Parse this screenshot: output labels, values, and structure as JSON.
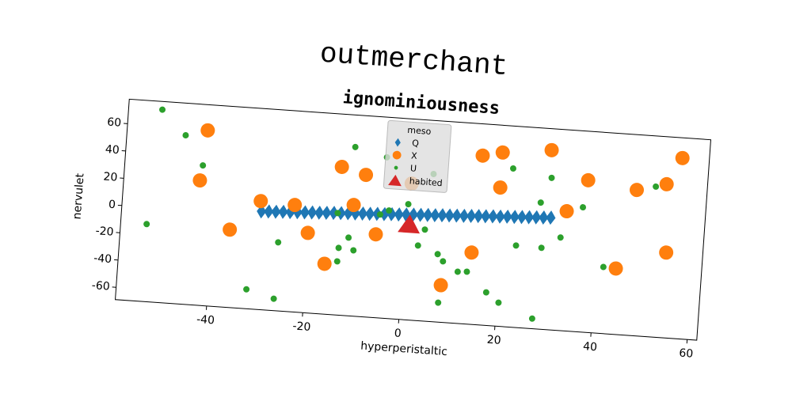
{
  "chart_data": {
    "type": "scatter",
    "suptitle": "outmerchant",
    "title": "ignominiousness",
    "xlabel": "hyperperistaltic",
    "ylabel": "nervulet",
    "xlim": [
      -59,
      62
    ],
    "ylim": [
      -69,
      78
    ],
    "xticks": [
      -40,
      -20,
      0,
      20,
      40,
      60
    ],
    "yticks": [
      -60,
      -40,
      -20,
      0,
      20,
      40,
      60
    ],
    "legend_title": "meso",
    "legend": "upper center",
    "series": [
      {
        "name": "Q",
        "color": "#1f77b4",
        "marker": "diamond",
        "x": [
          -30,
          -28.5,
          -27,
          -25.5,
          -24,
          -22.5,
          -21,
          -19.5,
          -18,
          -16.5,
          -15,
          -13.5,
          -12,
          -10.5,
          -9,
          -7.5,
          -6,
          -4.5,
          -3,
          -1.5,
          0,
          1.5,
          3,
          4.5,
          6,
          7.5,
          9,
          10.5,
          12,
          13.5,
          15,
          16.5,
          18,
          19.5,
          21,
          22.5,
          24,
          25.5,
          27,
          28.5,
          30
        ],
        "values": [
          2.8,
          3.1,
          3.3,
          3.6,
          3.8,
          4.1,
          4.3,
          4.6,
          4.8,
          5.1,
          5.4,
          5.6,
          5.9,
          6.1,
          6.4,
          6.6,
          6.9,
          7.1,
          7.4,
          7.6,
          7.9,
          8.2,
          8.4,
          8.7,
          8.9,
          9.2,
          9.4,
          9.7,
          9.9,
          10.2,
          10.5,
          10.7,
          11.0,
          11.2,
          11.5,
          11.7,
          12.0,
          12.2,
          12.5,
          12.7,
          13.0
        ]
      },
      {
        "name": "X",
        "color": "#ff7f0e",
        "marker": "circle",
        "x": [
          -42.3,
          -43.2,
          -36.3,
          -30.3,
          -23.2,
          -20.1,
          -14.0,
          -8.9,
          -11.0,
          -16.2,
          -6.0,
          0.7,
          14.1,
          8.2,
          15.0,
          19.1,
          19.1,
          29.2,
          33.2,
          37.2,
          47.4,
          53.5,
          56.4,
          54.4,
          44.2
        ],
        "values": [
          59.2,
          22.3,
          -12.1,
          10.3,
          9.2,
          -10.5,
          39.4,
          34.8,
          12.2,
          -32.2,
          -8.1,
          30.8,
          -16.5,
          -41.9,
          54.8,
          58.1,
          32.4,
          62.3,
          18.5,
          42.2,
          37.6,
          43.3,
          63.2,
          -6.6,
          -20.8
        ]
      },
      {
        "name": "U",
        "color": "#2ca02c",
        "marker": "point",
        "x": [
          -52.0,
          -46.8,
          -42.8,
          -53.6,
          -26.1,
          -32.0,
          -26.2,
          -11.5,
          -4.8,
          -14.2,
          -11.6,
          -13.5,
          -13.6,
          -10.4,
          -5.4,
          -3.6,
          0.3,
          4.1,
          2.9,
          7.1,
          8.3,
          11.5,
          13.4,
          7.9,
          17.7,
          20.4,
          27.6,
          21.5,
          29.6,
          27.7,
          23.2,
          28.5,
          32.3,
          36.5,
          41.6,
          51.3,
          5.1
        ],
        "values": [
          72.0,
          54.5,
          33.4,
          -12.3,
          -18.9,
          -54.8,
          -60.3,
          54.6,
          48.7,
          5.5,
          -11.9,
          -19.9,
          -29.8,
          -20.9,
          6.6,
          10.0,
          15.6,
          -2.1,
          -14.1,
          -19.4,
          -24.4,
          -31.2,
          -30.7,
          -54.8,
          -44.8,
          -51.7,
          -61.6,
          47.0,
          42.1,
          23.5,
          -9.1,
          -9.5,
          -1.0,
          22.2,
          -20.3,
          41.0,
          38.9
        ]
      },
      {
        "name": "habited",
        "color": "#d62728",
        "marker": "triangle",
        "x": [
          0.8
        ],
        "values": [
          1.1
        ]
      }
    ]
  }
}
